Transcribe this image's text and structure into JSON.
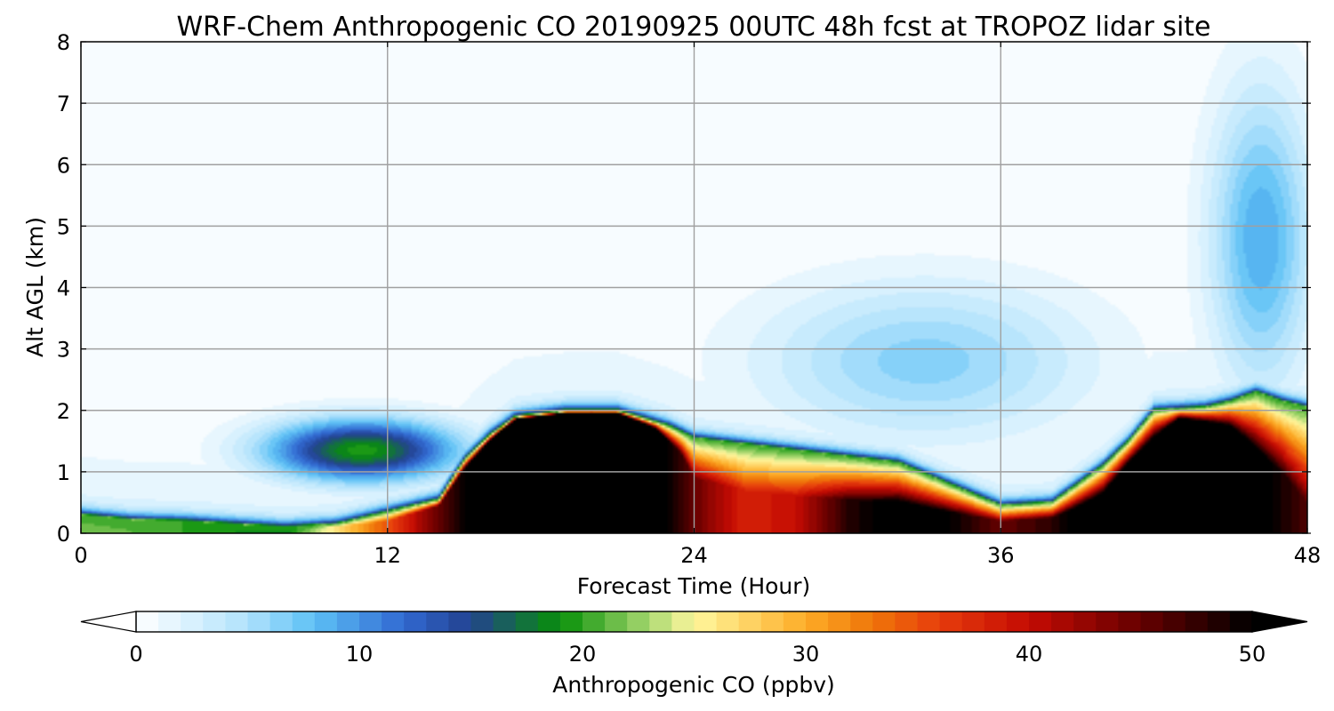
{
  "chart_data": {
    "type": "heatmap",
    "title": "WRF-Chem Anthropogenic CO 20190925 00UTC 48h fcst at TROPOZ lidar site",
    "xlabel": "Forecast Time (Hour)",
    "ylabel": "Alt AGL (km)",
    "xlim": [
      0,
      48
    ],
    "ylim": [
      0,
      8
    ],
    "x_ticks": [
      0,
      12,
      24,
      36,
      48
    ],
    "y_ticks": [
      0,
      1,
      2,
      3,
      4,
      5,
      6,
      7,
      8
    ],
    "grid": true,
    "colorbar": {
      "label": "Anthropogenic CO  (ppbv)",
      "min": 0,
      "max": 50,
      "ticks": [
        0,
        10,
        20,
        30,
        40,
        50
      ],
      "extend": "both",
      "levels": 50,
      "color_stops": [
        {
          "v": 0,
          "c": "#ffffff"
        },
        {
          "v": 5,
          "c": "#b0e2fc"
        },
        {
          "v": 8,
          "c": "#5cc0f5"
        },
        {
          "v": 12,
          "c": "#3168d1"
        },
        {
          "v": 15,
          "c": "#23428f"
        },
        {
          "v": 19,
          "c": "#079008"
        },
        {
          "v": 23,
          "c": "#a8d870"
        },
        {
          "v": 25,
          "c": "#fff79e"
        },
        {
          "v": 30,
          "c": "#fdac27"
        },
        {
          "v": 33,
          "c": "#ef7509"
        },
        {
          "v": 36,
          "c": "#e63c0c"
        },
        {
          "v": 40,
          "c": "#c40b03"
        },
        {
          "v": 45,
          "c": "#660000"
        },
        {
          "v": 50,
          "c": "#000000"
        }
      ]
    },
    "field_description": {
      "boundary_layer_top_km": [
        [
          0,
          0.3
        ],
        [
          2,
          0.22
        ],
        [
          4,
          0.2
        ],
        [
          6,
          0.15
        ],
        [
          8,
          0.1
        ],
        [
          10,
          0.15
        ],
        [
          12,
          0.35
        ],
        [
          14,
          0.55
        ],
        [
          15,
          1.2
        ],
        [
          16,
          1.6
        ],
        [
          17,
          1.9
        ],
        [
          19,
          2.0
        ],
        [
          21,
          2.0
        ],
        [
          23,
          1.75
        ],
        [
          24,
          1.55
        ],
        [
          27,
          1.4
        ],
        [
          30,
          1.25
        ],
        [
          32,
          1.15
        ],
        [
          34,
          0.8
        ],
        [
          36,
          0.45
        ],
        [
          38,
          0.5
        ],
        [
          40,
          1.1
        ],
        [
          41,
          1.5
        ],
        [
          42,
          2.0
        ],
        [
          44,
          2.05
        ],
        [
          45,
          2.15
        ],
        [
          46,
          2.3
        ],
        [
          47,
          2.15
        ],
        [
          48,
          2.05
        ]
      ],
      "low_core_top_km": [
        [
          0,
          0.05
        ],
        [
          4,
          0.04
        ],
        [
          8,
          0.02
        ],
        [
          12,
          0.2
        ],
        [
          14,
          0.45
        ],
        [
          15,
          1.05
        ],
        [
          16,
          1.5
        ],
        [
          17,
          1.85
        ],
        [
          19,
          1.95
        ],
        [
          21,
          1.95
        ],
        [
          22.5,
          1.7
        ],
        [
          23.5,
          1.3
        ],
        [
          24,
          0.9
        ],
        [
          26,
          0.7
        ],
        [
          28,
          0.6
        ],
        [
          30,
          0.55
        ],
        [
          32,
          0.5
        ],
        [
          34,
          0.35
        ],
        [
          36,
          0.2
        ],
        [
          38,
          0.25
        ],
        [
          40,
          0.6
        ],
        [
          41,
          1.1
        ],
        [
          42,
          1.5
        ],
        [
          43,
          1.85
        ],
        [
          45,
          1.7
        ],
        [
          47,
          1.0
        ],
        [
          48,
          0.5
        ]
      ],
      "peak_values_ppbv": [
        [
          0,
          22
        ],
        [
          4,
          20
        ],
        [
          8,
          18
        ],
        [
          12,
          35
        ],
        [
          14,
          45
        ],
        [
          16,
          55
        ],
        [
          20,
          58
        ],
        [
          22,
          55
        ],
        [
          24,
          45
        ],
        [
          26,
          38
        ],
        [
          28,
          40
        ],
        [
          30,
          48
        ],
        [
          32,
          52
        ],
        [
          34,
          50
        ],
        [
          36,
          45
        ],
        [
          38,
          48
        ],
        [
          40,
          55
        ],
        [
          44,
          58
        ],
        [
          48,
          46
        ]
      ],
      "residual_layer": {
        "x_center": 11,
        "z_center": 1.35,
        "peak_ppbv": 19.5
      },
      "elevated_plume": {
        "x_center": 46.2,
        "z_center": 4.8,
        "peak_ppbv": 9
      },
      "mid_plume": {
        "x_center": 33,
        "z_center": 2.8,
        "peak_ppbv": 6.5
      }
    }
  }
}
